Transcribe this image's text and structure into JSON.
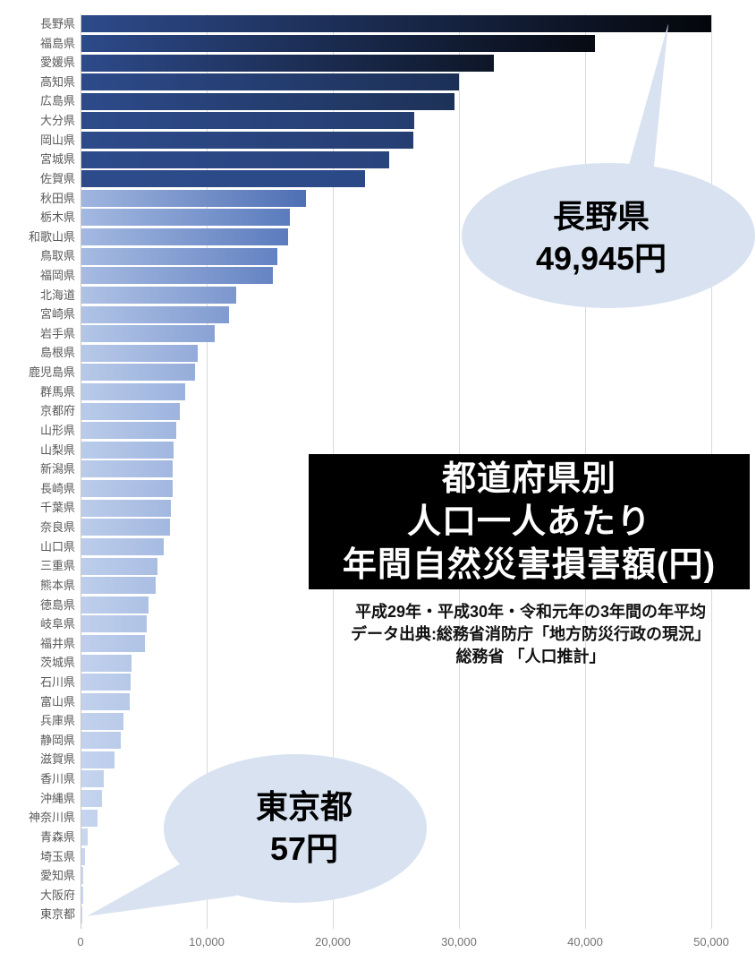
{
  "chart_data": {
    "type": "bar",
    "orientation": "horizontal",
    "title_lines": [
      "都道府県別",
      "人口一人あたり",
      "年間自然災害損害額(円)"
    ],
    "subtitle_lines": [
      "平成29年・平成30年・令和元年の3年間の年平均",
      "データ出典:総務省消防庁「地方防災行政の現況」",
      "総務省 「人口推計」"
    ],
    "categories": [
      "長野県",
      "福島県",
      "愛媛県",
      "高知県",
      "広島県",
      "大分県",
      "岡山県",
      "宮城県",
      "佐賀県",
      "秋田県",
      "栃木県",
      "和歌山県",
      "鳥取県",
      "福岡県",
      "北海道",
      "宮崎県",
      "岩手県",
      "島根県",
      "鹿児島県",
      "群馬県",
      "京都府",
      "山形県",
      "山梨県",
      "新潟県",
      "長崎県",
      "千葉県",
      "奈良県",
      "山口県",
      "三重県",
      "熊本県",
      "徳島県",
      "岐阜県",
      "福井県",
      "茨城県",
      "石川県",
      "富山県",
      "兵庫県",
      "静岡県",
      "滋賀県",
      "香川県",
      "沖縄県",
      "神奈川県",
      "青森県",
      "埼玉県",
      "愛知県",
      "大阪府",
      "東京都"
    ],
    "values": [
      49945,
      40700,
      32700,
      29900,
      29600,
      26400,
      26300,
      24400,
      22500,
      17800,
      16500,
      16400,
      15500,
      15200,
      12300,
      11700,
      10600,
      9200,
      9000,
      8200,
      7800,
      7500,
      7300,
      7250,
      7200,
      7100,
      7050,
      6500,
      6000,
      5900,
      5300,
      5200,
      5000,
      4000,
      3900,
      3800,
      3300,
      3100,
      2600,
      1800,
      1600,
      1300,
      500,
      280,
      150,
      120,
      57
    ],
    "xlim": [
      0,
      50000
    ],
    "x_ticks": [
      0,
      10000,
      20000,
      30000,
      40000,
      50000
    ],
    "x_tick_labels": [
      "0",
      "10,000",
      "20,000",
      "30,000",
      "40,000",
      "50,000"
    ],
    "grid": true,
    "legend": "none",
    "annotations": [
      {
        "target": "長野県",
        "lines": [
          "長野県",
          "49,945円"
        ]
      },
      {
        "target": "東京都",
        "lines": [
          "東京都",
          "57円"
        ]
      }
    ],
    "colors": {
      "scale_stops": [
        [
          0,
          "#c9d7f0"
        ],
        [
          4000,
          "#b6c8e8"
        ],
        [
          8000,
          "#9db3de"
        ],
        [
          12000,
          "#7e99cf"
        ],
        [
          16000,
          "#5f7fc0"
        ],
        [
          20000,
          "#3a5ba5"
        ],
        [
          22000,
          "#2d4a8a"
        ],
        [
          26000,
          "#263f74"
        ],
        [
          30000,
          "#1c3055"
        ],
        [
          33000,
          "#0c1322"
        ],
        [
          40000,
          "#070b14"
        ],
        [
          50000,
          "#04060b"
        ]
      ],
      "dark_bar_threshold": 20000,
      "callout_fill": "#d9e2f1",
      "gridline": "#d9d9d9",
      "y_label_color": "#595959",
      "x_label_color": "#737373",
      "title_bg": "#000000",
      "title_fg": "#ffffff"
    }
  }
}
